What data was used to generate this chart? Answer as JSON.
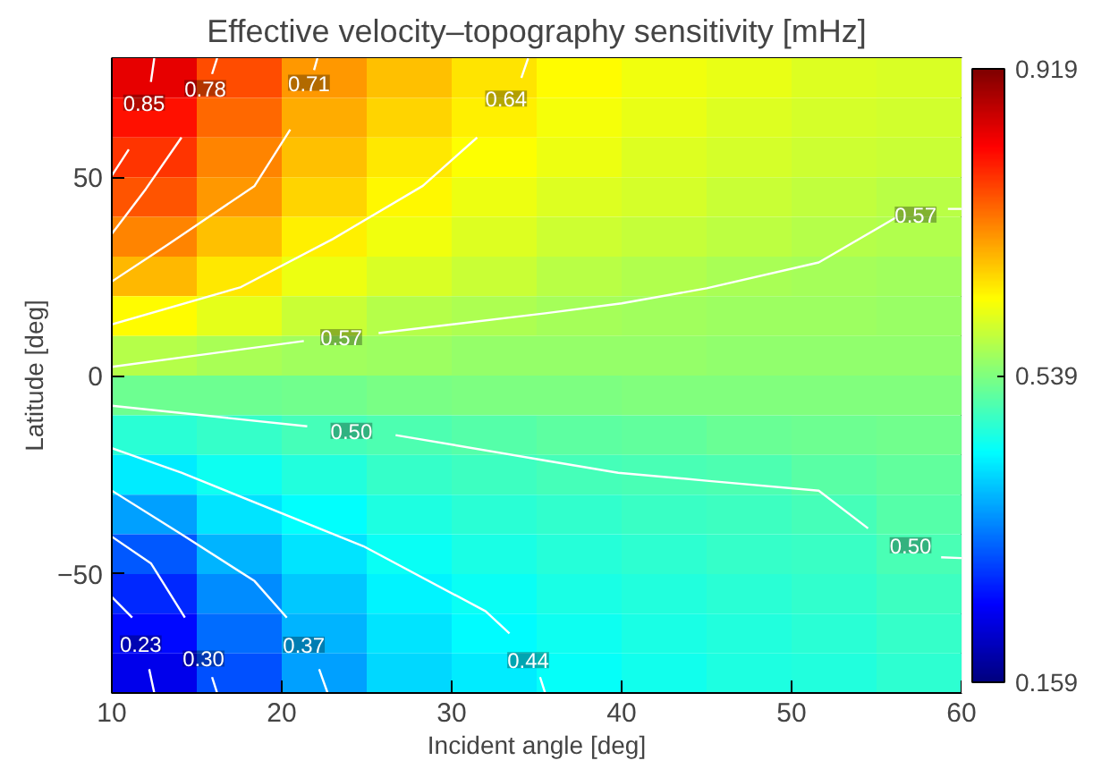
{
  "chart_data": {
    "type": "heatmap",
    "title": "Effective velocity–topography sensitivity [mHz]",
    "xlabel": "Incident angle [deg]",
    "ylabel": "Latitude [deg]",
    "x": [
      12.5,
      17.5,
      22.5,
      27.5,
      32.5,
      37.5,
      42.5,
      47.5,
      52.5,
      57.5
    ],
    "y": [
      75,
      65,
      55,
      45,
      35,
      25,
      15,
      5,
      -5,
      -15,
      -25,
      -35,
      -45,
      -55,
      -65,
      -75
    ],
    "xlim": [
      10,
      60
    ],
    "ylim": [
      -80,
      80
    ],
    "xticks": [
      10,
      20,
      30,
      40,
      50,
      60
    ],
    "yticks": [
      -50,
      0,
      50
    ],
    "clim": [
      0.159,
      0.919
    ],
    "cticks": [
      0.159,
      0.539,
      0.919
    ],
    "grid": false,
    "cells": [
      [
        0.84,
        0.765,
        0.71,
        0.68,
        0.652,
        0.635,
        0.625,
        0.617,
        0.61,
        0.605
      ],
      [
        0.81,
        0.745,
        0.695,
        0.665,
        0.643,
        0.628,
        0.618,
        0.61,
        0.604,
        0.6
      ],
      [
        0.785,
        0.725,
        0.68,
        0.65,
        0.633,
        0.62,
        0.61,
        0.603,
        0.597,
        0.593
      ],
      [
        0.76,
        0.71,
        0.665,
        0.638,
        0.622,
        0.61,
        0.602,
        0.595,
        0.589,
        0.582
      ],
      [
        0.725,
        0.68,
        0.645,
        0.625,
        0.61,
        0.598,
        0.59,
        0.584,
        0.578,
        0.575
      ],
      [
        0.685,
        0.65,
        0.62,
        0.605,
        0.593,
        0.583,
        0.576,
        0.57,
        0.567,
        0.565
      ],
      [
        0.635,
        0.615,
        0.595,
        0.58,
        0.572,
        0.568,
        0.565,
        0.562,
        0.56,
        0.558
      ],
      [
        0.58,
        0.57,
        0.565,
        0.56,
        0.556,
        0.555,
        0.554,
        0.553,
        0.552,
        0.551
      ],
      [
        0.525,
        0.525,
        0.53,
        0.535,
        0.537,
        0.538,
        0.539,
        0.54,
        0.54,
        0.541
      ],
      [
        0.475,
        0.485,
        0.495,
        0.502,
        0.508,
        0.513,
        0.518,
        0.522,
        0.525,
        0.528
      ],
      [
        0.43,
        0.455,
        0.47,
        0.485,
        0.49,
        0.495,
        0.499,
        0.502,
        0.51,
        0.516
      ],
      [
        0.375,
        0.425,
        0.445,
        0.467,
        0.475,
        0.482,
        0.487,
        0.491,
        0.495,
        0.508
      ],
      [
        0.32,
        0.39,
        0.425,
        0.452,
        0.463,
        0.472,
        0.478,
        0.483,
        0.487,
        0.5
      ],
      [
        0.285,
        0.36,
        0.405,
        0.437,
        0.452,
        0.463,
        0.47,
        0.476,
        0.48,
        0.49
      ],
      [
        0.26,
        0.335,
        0.39,
        0.425,
        0.442,
        0.455,
        0.463,
        0.47,
        0.475,
        0.484
      ],
      [
        0.24,
        0.315,
        0.375,
        0.415,
        0.432,
        0.448,
        0.457,
        0.465,
        0.47,
        0.478
      ]
    ],
    "series": [
      {
        "type": "line",
        "name": "0.85",
        "color": "#ffffff",
        "x": [
          10,
          11,
          11.9,
          12.3,
          12.5
        ],
        "values": [
          50.4,
          57,
          null,
          74,
          80
        ]
      },
      {
        "type": "line",
        "name": "0.78",
        "color": "#ffffff",
        "x": [
          10,
          12,
          14.1,
          15.5,
          15.9,
          16.2
        ],
        "values": [
          35.7,
          47,
          60,
          null,
          76,
          80
        ]
      },
      {
        "type": "line",
        "name": "0.71",
        "color": "#ffffff",
        "x": [
          10,
          13.3,
          18.4,
          20.5,
          21.6,
          21.9,
          22.1
        ],
        "values": [
          23.7,
          33,
          47.8,
          62,
          null,
          77,
          80
        ]
      },
      {
        "type": "line",
        "name": "0.64",
        "color": "#ffffff",
        "x": [
          10,
          17.6,
          23,
          28.3,
          31.5,
          33.2,
          34.1,
          34.5
        ],
        "values": [
          12.9,
          22.3,
          34.4,
          47.8,
          60,
          null,
          75,
          80
        ]
      },
      {
        "type": "line",
        "name": "0.57",
        "color": "#ffffff",
        "x": [
          10,
          21.3,
          23.5,
          25.7,
          35.5,
          40,
          45,
          51.6,
          56.1,
          57.3,
          59.2,
          60
        ],
        "values": [
          2.2,
          8.7,
          null,
          10.7,
          15.7,
          18.2,
          22,
          28.5,
          39.7,
          null,
          42,
          42
        ]
      },
      {
        "type": "line",
        "name": "0.50",
        "color": "#ffffff",
        "x": [
          10,
          21.5,
          24.1,
          26.7,
          35.5,
          39.8,
          45,
          51.6,
          54.5,
          57,
          58.8,
          60
        ],
        "values": [
          -7.6,
          -12.8,
          null,
          -15,
          -21.4,
          -24.5,
          -26.5,
          -29,
          -38.5,
          null,
          -45.8,
          -46
        ]
      },
      {
        "type": "line",
        "name": "0.44",
        "color": "#ffffff",
        "x": [
          10,
          14.1,
          24.8,
          32,
          33.4,
          34.5,
          35.2,
          35.5
        ],
        "values": [
          -18.3,
          -24.5,
          -43,
          -59.4,
          -65,
          null,
          -76,
          -80
        ]
      },
      {
        "type": "line",
        "name": "0.37",
        "color": "#ffffff",
        "x": [
          10,
          14.1,
          18.4,
          20.3,
          21.3,
          22.2,
          22.7
        ],
        "values": [
          -29,
          -40,
          -51.8,
          -61,
          null,
          -74,
          -80
        ]
      },
      {
        "type": "line",
        "name": "0.30",
        "color": "#ffffff",
        "x": [
          10,
          12.3,
          14.3,
          15.4,
          15.9,
          16.2
        ],
        "values": [
          -40.6,
          -47.3,
          -61,
          null,
          -76,
          -80
        ]
      },
      {
        "type": "line",
        "name": "0.23",
        "color": "#ffffff",
        "x": [
          10,
          11.2,
          11.7,
          12.2,
          12.5
        ],
        "values": [
          -55.8,
          -61,
          null,
          -74,
          -80
        ]
      }
    ]
  }
}
